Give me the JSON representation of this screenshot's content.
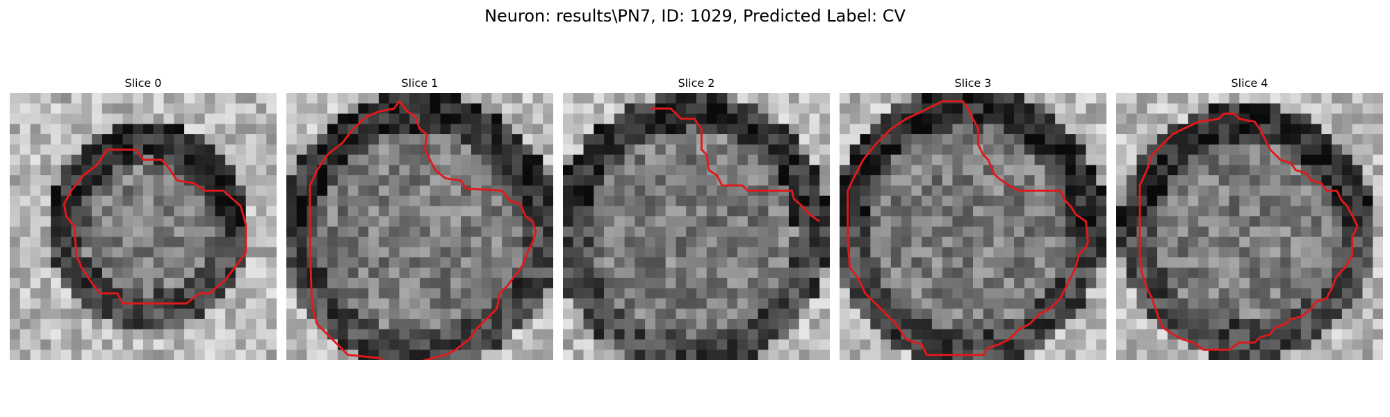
{
  "figure": {
    "title": "Neuron: results\\PN7, ID: 1029, Predicted Label: CV"
  },
  "panels": [
    {
      "title": "Slice 0",
      "contour": [
        [
          12.3,
          5.5
        ],
        [
          13.0,
          6.5
        ],
        [
          14.8,
          6.5
        ],
        [
          15.5,
          7.3
        ],
        [
          16.3,
          8.5
        ],
        [
          18.0,
          8.8
        ],
        [
          19.0,
          9.5
        ],
        [
          20.8,
          9.5
        ],
        [
          22.5,
          11.0
        ],
        [
          23.0,
          12.8
        ],
        [
          23.0,
          15.5
        ],
        [
          22.3,
          16.5
        ],
        [
          21.0,
          18.2
        ],
        [
          19.5,
          19.5
        ],
        [
          18.5,
          19.5
        ],
        [
          17.2,
          20.5
        ],
        [
          11.0,
          20.5
        ],
        [
          10.5,
          19.5
        ],
        [
          8.8,
          19.5
        ],
        [
          8.0,
          18.5
        ],
        [
          7.0,
          17.0
        ],
        [
          6.5,
          15.8
        ],
        [
          6.3,
          13.0
        ],
        [
          5.5,
          12.0
        ],
        [
          5.3,
          10.8
        ],
        [
          6.0,
          9.5
        ],
        [
          7.2,
          8.0
        ],
        [
          8.5,
          7.0
        ],
        [
          9.5,
          5.5
        ]
      ]
    },
    {
      "title": "Slice 1",
      "contour": [
        [
          9.0,
          1.8
        ],
        [
          10.5,
          1.5
        ],
        [
          11.0,
          0.8
        ],
        [
          11.8,
          1.8
        ],
        [
          12.5,
          2.2
        ],
        [
          13.0,
          3.5
        ],
        [
          13.7,
          4.0
        ],
        [
          13.5,
          5.5
        ],
        [
          14.0,
          6.5
        ],
        [
          14.5,
          7.5
        ],
        [
          15.5,
          8.3
        ],
        [
          17.0,
          8.5
        ],
        [
          17.5,
          9.3
        ],
        [
          21.0,
          9.5
        ],
        [
          21.8,
          10.5
        ],
        [
          22.8,
          10.8
        ],
        [
          23.3,
          12.0
        ],
        [
          24.0,
          12.5
        ],
        [
          24.3,
          13.5
        ],
        [
          24.0,
          14.5
        ],
        [
          23.5,
          15.5
        ],
        [
          23.0,
          16.8
        ],
        [
          22.5,
          17.5
        ],
        [
          21.5,
          18.8
        ],
        [
          20.8,
          19.5
        ],
        [
          20.5,
          21.0
        ],
        [
          19.5,
          22.0
        ],
        [
          18.5,
          23.0
        ],
        [
          17.8,
          24.0
        ],
        [
          16.5,
          25.0
        ],
        [
          15.5,
          25.5
        ],
        [
          13.5,
          26.0
        ],
        [
          12.5,
          26.5
        ],
        [
          10.0,
          26.5
        ],
        [
          9.0,
          25.8
        ],
        [
          6.0,
          25.5
        ],
        [
          4.5,
          24.0
        ],
        [
          3.0,
          22.5
        ],
        [
          2.5,
          20.8
        ],
        [
          2.3,
          15.0
        ],
        [
          2.3,
          9.0
        ],
        [
          3.0,
          7.5
        ],
        [
          4.0,
          6.0
        ],
        [
          5.5,
          4.8
        ],
        [
          6.5,
          3.5
        ],
        [
          7.8,
          2.3
        ]
      ]
    },
    {
      "title": "Slice 2",
      "contour": [
        [
          8.5,
          1.5
        ],
        [
          10.5,
          1.5
        ],
        [
          11.5,
          2.5
        ],
        [
          12.8,
          2.5
        ],
        [
          13.5,
          3.5
        ],
        [
          13.5,
          5.5
        ],
        [
          14.0,
          6.0
        ],
        [
          14.2,
          7.5
        ],
        [
          15.0,
          8.0
        ],
        [
          15.5,
          9.0
        ],
        [
          17.5,
          9.0
        ],
        [
          18.0,
          9.5
        ],
        [
          22.3,
          9.5
        ],
        [
          22.5,
          10.3
        ],
        [
          23.3,
          11.0
        ],
        [
          24.0,
          11.8
        ],
        [
          25.0,
          12.5
        ]
      ]
    },
    {
      "title": "Slice 3",
      "contour": [
        [
          10.0,
          0.8
        ],
        [
          12.0,
          0.8
        ],
        [
          12.5,
          1.5
        ],
        [
          13.0,
          2.5
        ],
        [
          13.5,
          3.5
        ],
        [
          13.5,
          5.0
        ],
        [
          14.0,
          6.0
        ],
        [
          14.5,
          6.5
        ],
        [
          15.0,
          7.8
        ],
        [
          15.5,
          8.3
        ],
        [
          16.5,
          9.0
        ],
        [
          17.5,
          9.5
        ],
        [
          21.5,
          9.5
        ],
        [
          22.0,
          10.5
        ],
        [
          22.5,
          11.0
        ],
        [
          23.0,
          11.8
        ],
        [
          24.0,
          12.5
        ],
        [
          24.2,
          14.5
        ],
        [
          24.0,
          15.0
        ],
        [
          23.3,
          15.8
        ],
        [
          23.0,
          17.0
        ],
        [
          22.5,
          18.0
        ],
        [
          22.0,
          19.0
        ],
        [
          21.5,
          20.0
        ],
        [
          20.5,
          21.0
        ],
        [
          19.5,
          21.5
        ],
        [
          18.5,
          22.5
        ],
        [
          17.5,
          23.0
        ],
        [
          16.5,
          24.0
        ],
        [
          15.5,
          24.5
        ],
        [
          14.5,
          24.8
        ],
        [
          14.0,
          25.5
        ],
        [
          8.5,
          25.5
        ],
        [
          8.0,
          24.5
        ],
        [
          6.5,
          24.0
        ],
        [
          5.5,
          22.5
        ],
        [
          4.0,
          21.0
        ],
        [
          2.5,
          19.5
        ],
        [
          1.8,
          18.0
        ],
        [
          1.0,
          17.0
        ],
        [
          0.8,
          14.5
        ],
        [
          0.8,
          9.5
        ],
        [
          1.5,
          8.0
        ],
        [
          2.3,
          6.5
        ],
        [
          3.5,
          5.0
        ],
        [
          5.0,
          3.5
        ],
        [
          6.5,
          2.5
        ],
        [
          8.0,
          1.8
        ]
      ]
    },
    {
      "title": "Slice 4",
      "contour": [
        [
          6.5,
          3.5
        ],
        [
          8.0,
          2.8
        ],
        [
          10.0,
          2.5
        ],
        [
          10.5,
          2.0
        ],
        [
          11.5,
          2.0
        ],
        [
          12.0,
          2.5
        ],
        [
          13.5,
          2.8
        ],
        [
          14.0,
          3.5
        ],
        [
          14.5,
          4.5
        ],
        [
          15.0,
          5.5
        ],
        [
          16.0,
          6.5
        ],
        [
          17.0,
          6.8
        ],
        [
          17.5,
          7.5
        ],
        [
          18.5,
          7.8
        ],
        [
          19.0,
          8.5
        ],
        [
          20.0,
          8.8
        ],
        [
          20.5,
          9.5
        ],
        [
          21.5,
          9.5
        ],
        [
          22.0,
          10.5
        ],
        [
          22.5,
          11.0
        ],
        [
          23.3,
          12.5
        ],
        [
          23.5,
          13.0
        ],
        [
          23.0,
          14.0
        ],
        [
          23.0,
          15.8
        ],
        [
          22.3,
          17.0
        ],
        [
          21.5,
          17.8
        ],
        [
          21.0,
          19.0
        ],
        [
          20.5,
          20.0
        ],
        [
          19.5,
          20.3
        ],
        [
          19.0,
          21.0
        ],
        [
          18.0,
          21.8
        ],
        [
          17.0,
          22.0
        ],
        [
          16.5,
          22.5
        ],
        [
          15.5,
          22.8
        ],
        [
          15.0,
          23.5
        ],
        [
          14.0,
          23.8
        ],
        [
          13.5,
          24.3
        ],
        [
          12.0,
          24.3
        ],
        [
          11.0,
          25.0
        ],
        [
          8.5,
          25.0
        ],
        [
          7.5,
          24.3
        ],
        [
          6.5,
          24.0
        ],
        [
          5.5,
          23.5
        ],
        [
          4.5,
          22.8
        ],
        [
          4.0,
          21.5
        ],
        [
          3.5,
          20.0
        ],
        [
          3.0,
          19.0
        ],
        [
          2.5,
          17.5
        ],
        [
          2.3,
          15.5
        ],
        [
          2.3,
          9.0
        ],
        [
          3.0,
          7.5
        ],
        [
          3.5,
          6.0
        ],
        [
          4.5,
          5.0
        ],
        [
          5.5,
          4.0
        ]
      ]
    }
  ],
  "image_meta": {
    "grid_size": 26,
    "contour_color": "#e0191b",
    "cmap": "gray"
  }
}
